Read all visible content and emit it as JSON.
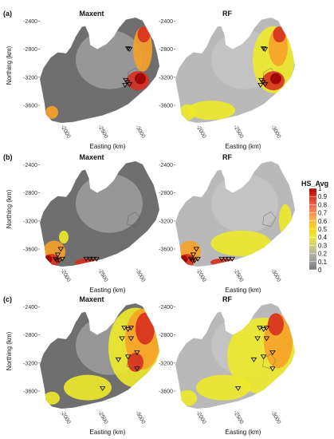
{
  "figure": {
    "legend": {
      "title": "HS_Avg",
      "ticks": [
        "1",
        "0.9",
        "0.8",
        "0.7",
        "0.6",
        "0.5",
        "0.4",
        "0.3",
        "0.2",
        "0.1",
        "0"
      ],
      "colors": [
        "#b30000",
        "#d7301f",
        "#ef6548",
        "#fc8d59",
        "#fdbb44",
        "#f6d816",
        "#e8e83a",
        "#cfcf7a",
        "#b5b5a0",
        "#9a9a9a",
        "#7a7a7a"
      ]
    },
    "colors": {
      "maxent_base": "#6f6f6f",
      "maxent_light": "#a8a8a8",
      "rf_base": "#b9b9b9",
      "yellow": "#eeea2a",
      "orange": "#f7a12a",
      "red": "#d7301f",
      "darkred": "#9e0000"
    },
    "panels": [
      {
        "label": "(a)",
        "models": [
          {
            "title": "Maxent",
            "points": [
              [
                2880,
                -2790
              ],
              [
                2900,
                -2800
              ],
              [
                2850,
                -3240
              ],
              [
                2870,
                -3270
              ],
              [
                2900,
                -3300
              ],
              [
                2840,
                -3310
              ]
            ]
          },
          {
            "title": "RF",
            "points": [
              [
                2880,
                -2790
              ],
              [
                2900,
                -2800
              ],
              [
                2850,
                -3240
              ],
              [
                2870,
                -3270
              ],
              [
                2900,
                -3300
              ],
              [
                2840,
                -3310
              ]
            ]
          }
        ],
        "y_title": "Northing (km)",
        "y_ticks": [
          "-2400",
          "-2800",
          "-3200",
          "-3600"
        ],
        "x_title": "Easting (km)",
        "x_ticks": [
          "2000",
          "2500",
          "3000"
        ]
      },
      {
        "label": "(b)",
        "models": [
          {
            "title": "Maxent",
            "points": [
              [
                1980,
                -3600
              ],
              [
                1940,
                -3680
              ],
              [
                1910,
                -3740
              ],
              [
                1930,
                -3760
              ],
              [
                1960,
                -3760
              ],
              [
                2000,
                -3740
              ],
              [
                2320,
                -3740
              ],
              [
                2370,
                -3740
              ],
              [
                2410,
                -3740
              ],
              [
                2460,
                -3740
              ]
            ]
          },
          {
            "title": "RF",
            "points": [
              [
                1980,
                -3600
              ],
              [
                1940,
                -3680
              ],
              [
                1910,
                -3740
              ],
              [
                1930,
                -3760
              ],
              [
                1960,
                -3760
              ],
              [
                2000,
                -3740
              ],
              [
                2320,
                -3740
              ],
              [
                2370,
                -3740
              ],
              [
                2410,
                -3740
              ],
              [
                2460,
                -3740
              ]
            ]
          }
        ],
        "y_title": "Northing (km)",
        "y_ticks": [
          "-2400",
          "-2800",
          "-3200",
          "-3600"
        ],
        "x_title": "Easting (km)",
        "x_ticks": [
          "2000",
          "2500",
          "3000"
        ]
      },
      {
        "label": "(c)",
        "models": [
          {
            "title": "Maxent",
            "points": [
              [
                2830,
                -2700
              ],
              [
                2880,
                -2720
              ],
              [
                2920,
                -2700
              ],
              [
                2800,
                -2850
              ],
              [
                2920,
                -2850
              ],
              [
                2750,
                -3150
              ],
              [
                2880,
                -3110
              ],
              [
                3000,
                -3050
              ],
              [
                3000,
                -3280
              ],
              [
                2540,
                -3560
              ]
            ]
          },
          {
            "title": "RF",
            "points": [
              [
                2830,
                -2700
              ],
              [
                2880,
                -2720
              ],
              [
                2920,
                -2700
              ],
              [
                2800,
                -2850
              ],
              [
                2920,
                -2850
              ],
              [
                2750,
                -3150
              ],
              [
                2880,
                -3110
              ],
              [
                3000,
                -3050
              ],
              [
                3000,
                -3280
              ],
              [
                2540,
                -3560
              ]
            ]
          }
        ],
        "y_title": "Northing (km)",
        "y_ticks": [
          "-2400",
          "-2800",
          "-3200",
          "-3600"
        ],
        "x_title": "Easting (km)",
        "x_ticks": [
          "2000",
          "2500",
          "3000"
        ]
      }
    ]
  }
}
